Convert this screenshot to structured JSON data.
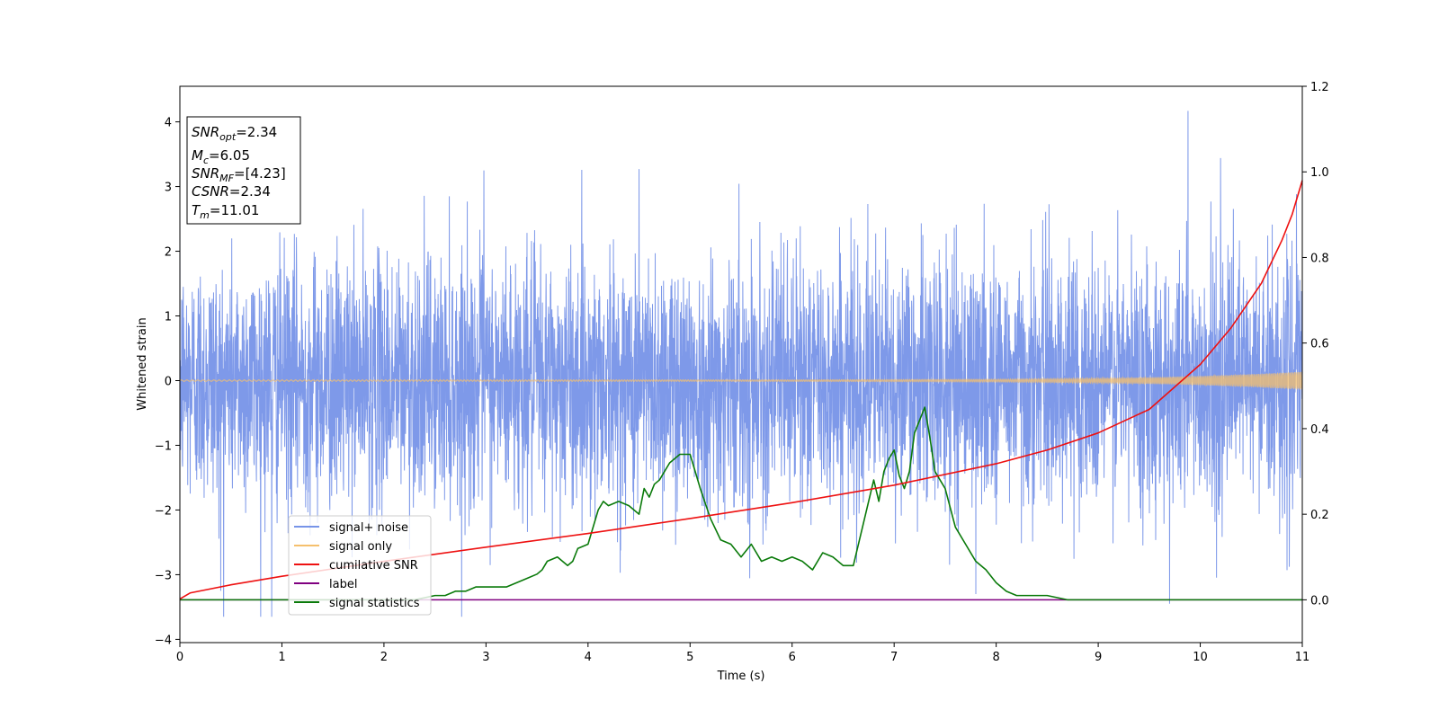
{
  "chart_data": {
    "type": "line",
    "xlabel": "Time (s)",
    "ylabel": "Whitened strain",
    "xlim": [
      0,
      11
    ],
    "ylim": [
      -4.05,
      4.55
    ],
    "y2lim": [
      -0.1,
      1.2
    ],
    "xticks": [
      "0",
      "1",
      "2",
      "3",
      "4",
      "5",
      "6",
      "7",
      "8",
      "9",
      "10",
      "11"
    ],
    "yticks": [
      "4",
      "3",
      "2",
      "1",
      "0",
      "−1",
      "−2",
      "−3",
      "−4"
    ],
    "y2ticks": [
      "1.2",
      "1.0",
      "0.8",
      "0.6",
      "0.4",
      "0.2",
      "0.0"
    ],
    "grid": false,
    "legend_position": "lower-left",
    "info_box": {
      "snr_opt": {
        "base": "SNR",
        "sub": "opt",
        "value": "=2.34"
      },
      "mc": {
        "base": "M",
        "sub": "c",
        "value": "=6.05"
      },
      "snr_mf": {
        "base": "SNR",
        "sub": "MF",
        "value": "=[4.23]"
      },
      "csnr": {
        "base": "CSNR",
        "sub": "",
        "value": "=2.34"
      },
      "tm": {
        "base": "T",
        "sub": "m",
        "value": "=11.01"
      }
    },
    "series": [
      {
        "name": "signal+ noise",
        "axis": "left",
        "color": "#7794e8",
        "description_range": [
          -3.65,
          4.17
        ],
        "typical_envelope": [
          -1.7,
          1.9
        ],
        "notable_extrema": [
          [
            0.9,
            -3.65
          ],
          [
            9.88,
            4.17
          ],
          [
            9.7,
            -3.45
          ],
          [
            0.4,
            -3.25
          ],
          [
            2.98,
            3.25
          ],
          [
            4.5,
            3.27
          ],
          [
            7.8,
            -3.3
          ]
        ]
      },
      {
        "name": "signal only",
        "axis": "left",
        "color": "#f5c06d",
        "envelope": [
          [
            0,
            0.01
          ],
          [
            6,
            0.012
          ],
          [
            8,
            0.02
          ],
          [
            9,
            0.035
          ],
          [
            9.5,
            0.05
          ],
          [
            10,
            0.07
          ],
          [
            10.5,
            0.1
          ],
          [
            11,
            0.14
          ]
        ]
      },
      {
        "name": "cumilative SNR",
        "axis": "right",
        "color": "#ee1111",
        "x": [
          0,
          0.1,
          0.5,
          1,
          2,
          3,
          4,
          5,
          6,
          7,
          8,
          8.5,
          9,
          9.5,
          10,
          10.3,
          10.6,
          10.8,
          10.9,
          11
        ],
        "values": [
          0.002,
          0.016,
          0.035,
          0.055,
          0.09,
          0.123,
          0.155,
          0.19,
          0.227,
          0.268,
          0.318,
          0.35,
          0.39,
          0.445,
          0.55,
          0.635,
          0.74,
          0.84,
          0.9,
          0.98
        ]
      },
      {
        "name": "label",
        "axis": "right",
        "color": "#800080",
        "x": [
          0,
          11
        ],
        "values": [
          0,
          0
        ]
      },
      {
        "name": "signal statistics",
        "axis": "right",
        "color": "#0a7a0a",
        "x": [
          0,
          2.3,
          2.5,
          2.6,
          2.7,
          2.8,
          2.9,
          3.0,
          3.1,
          3.2,
          3.3,
          3.4,
          3.5,
          3.55,
          3.6,
          3.7,
          3.8,
          3.85,
          3.9,
          4.0,
          4.1,
          4.15,
          4.2,
          4.3,
          4.4,
          4.5,
          4.55,
          4.6,
          4.65,
          4.7,
          4.8,
          4.9,
          5.0,
          5.05,
          5.1,
          5.2,
          5.3,
          5.4,
          5.5,
          5.6,
          5.7,
          5.8,
          5.9,
          6.0,
          6.1,
          6.2,
          6.3,
          6.4,
          6.5,
          6.6,
          6.7,
          6.75,
          6.8,
          6.85,
          6.9,
          6.95,
          7.0,
          7.05,
          7.1,
          7.15,
          7.2,
          7.25,
          7.3,
          7.35,
          7.4,
          7.5,
          7.6,
          7.7,
          7.8,
          7.9,
          8.0,
          8.1,
          8.2,
          8.3,
          8.5,
          8.7,
          9.0,
          9.3,
          10.0,
          11.0
        ],
        "values": [
          0,
          0,
          0.01,
          0.01,
          0.02,
          0.02,
          0.03,
          0.03,
          0.03,
          0.03,
          0.04,
          0.05,
          0.06,
          0.07,
          0.09,
          0.1,
          0.08,
          0.09,
          0.12,
          0.13,
          0.21,
          0.23,
          0.22,
          0.23,
          0.22,
          0.2,
          0.26,
          0.24,
          0.27,
          0.28,
          0.32,
          0.34,
          0.34,
          0.3,
          0.26,
          0.19,
          0.14,
          0.13,
          0.1,
          0.13,
          0.09,
          0.1,
          0.09,
          0.1,
          0.09,
          0.07,
          0.11,
          0.1,
          0.08,
          0.08,
          0.18,
          0.23,
          0.28,
          0.23,
          0.3,
          0.33,
          0.35,
          0.29,
          0.26,
          0.3,
          0.39,
          0.42,
          0.45,
          0.38,
          0.3,
          0.26,
          0.17,
          0.13,
          0.09,
          0.07,
          0.04,
          0.02,
          0.01,
          0.01,
          0.01,
          0,
          0,
          0,
          0,
          0
        ]
      }
    ]
  }
}
